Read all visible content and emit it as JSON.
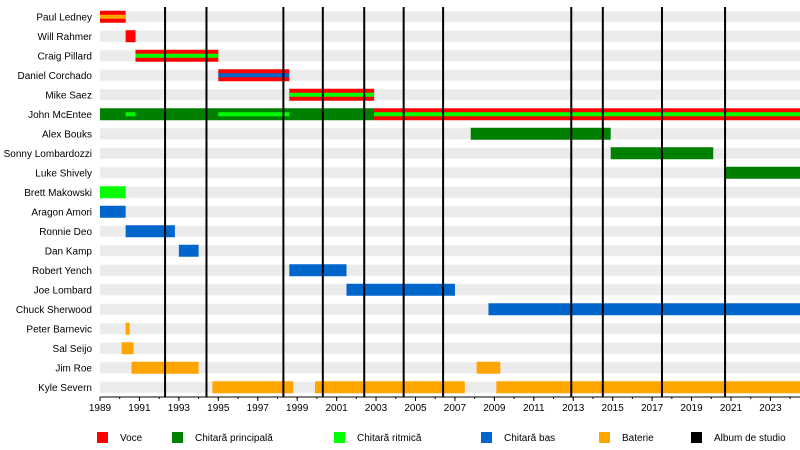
{
  "chart_data": {
    "type": "timeline",
    "title": "",
    "x_range": [
      1989,
      2024.5
    ],
    "x_ticks": [
      1989,
      1991,
      1993,
      1995,
      1997,
      1999,
      2001,
      2003,
      2005,
      2007,
      2009,
      2011,
      2013,
      2015,
      2017,
      2019,
      2021,
      2023
    ],
    "albums": [
      1992.3,
      1994.4,
      1998.3,
      2000.3,
      2002.4,
      2004.4,
      2006.4,
      2012.9,
      2014.5,
      2017.5,
      2020.7
    ],
    "roles": [
      {
        "key": "voce",
        "label": "Voce",
        "color": "#ff0000"
      },
      {
        "key": "principal",
        "label": "Chitară principală",
        "color": "#008000"
      },
      {
        "key": "ritmic",
        "label": "Chitară ritmică",
        "color": "#00ff00"
      },
      {
        "key": "bas",
        "label": "Chitară bas",
        "color": "#0066cc"
      },
      {
        "key": "baterie",
        "label": "Baterie",
        "color": "#ffa500"
      },
      {
        "key": "album",
        "label": "Album de studio",
        "color": "#000000"
      }
    ],
    "members": [
      {
        "name": "Paul Ledney",
        "segments": [
          {
            "start": 1989.0,
            "end": 1990.3,
            "role": "voce",
            "sub": "baterie"
          }
        ]
      },
      {
        "name": "Will Rahmer",
        "segments": [
          {
            "start": 1990.3,
            "end": 1990.8,
            "role": "voce"
          }
        ]
      },
      {
        "name": "Craig Pillard",
        "segments": [
          {
            "start": 1990.8,
            "end": 1995.0,
            "role": "voce",
            "sub": "ritmic"
          }
        ]
      },
      {
        "name": "Daniel Corchado",
        "segments": [
          {
            "start": 1995.0,
            "end": 1998.6,
            "role": "voce",
            "sub": "bas"
          }
        ]
      },
      {
        "name": "Mike Saez",
        "segments": [
          {
            "start": 1998.6,
            "end": 2002.9,
            "role": "voce",
            "sub": "ritmic"
          }
        ]
      },
      {
        "name": "John McEntee",
        "segments": [
          {
            "start": 1989.0,
            "end": 2002.9,
            "role": "principal"
          },
          {
            "start": 2002.9,
            "end": 2024.5,
            "role": "voce",
            "sub": "principal"
          },
          {
            "start": 1990.3,
            "end": 1990.8,
            "role": "ritmic",
            "overlay": true
          },
          {
            "start": 1995.0,
            "end": 1998.6,
            "role": "ritmic",
            "overlay": true
          },
          {
            "start": 2002.9,
            "end": 2007.8,
            "role": "ritmic",
            "overlay": true
          },
          {
            "start": 2007.8,
            "end": 2024.5,
            "role": "ritmic",
            "overlay": true
          }
        ]
      },
      {
        "name": "Alex Bouks",
        "segments": [
          {
            "start": 2007.8,
            "end": 2014.9,
            "role": "principal"
          }
        ]
      },
      {
        "name": "Sonny Lombardozzi",
        "segments": [
          {
            "start": 2014.9,
            "end": 2020.1,
            "role": "principal"
          }
        ]
      },
      {
        "name": "Luke Shively",
        "segments": [
          {
            "start": 2020.7,
            "end": 2024.5,
            "role": "principal"
          }
        ]
      },
      {
        "name": "Brett Makowski",
        "segments": [
          {
            "start": 1989.0,
            "end": 1990.3,
            "role": "ritmic"
          }
        ]
      },
      {
        "name": "Aragon Amori",
        "segments": [
          {
            "start": 1989.0,
            "end": 1990.3,
            "role": "bas"
          }
        ]
      },
      {
        "name": "Ronnie Deo",
        "segments": [
          {
            "start": 1990.3,
            "end": 1992.8,
            "role": "bas"
          }
        ]
      },
      {
        "name": "Dan Kamp",
        "segments": [
          {
            "start": 1993.0,
            "end": 1994.0,
            "role": "bas"
          }
        ]
      },
      {
        "name": "Robert Yench",
        "segments": [
          {
            "start": 1998.6,
            "end": 2001.5,
            "role": "bas"
          }
        ]
      },
      {
        "name": "Joe Lombard",
        "segments": [
          {
            "start": 2001.5,
            "end": 2007.0,
            "role": "bas"
          }
        ]
      },
      {
        "name": "Chuck Sherwood",
        "segments": [
          {
            "start": 2008.7,
            "end": 2024.5,
            "role": "bas"
          }
        ]
      },
      {
        "name": "Peter Barnevic",
        "segments": [
          {
            "start": 1990.3,
            "end": 1990.5,
            "role": "baterie"
          }
        ]
      },
      {
        "name": "Sal Seijo",
        "segments": [
          {
            "start": 1990.1,
            "end": 1990.7,
            "role": "baterie"
          }
        ]
      },
      {
        "name": "Jim Roe",
        "segments": [
          {
            "start": 1990.6,
            "end": 1994.0,
            "role": "baterie"
          },
          {
            "start": 2008.1,
            "end": 2009.3,
            "role": "baterie"
          }
        ]
      },
      {
        "name": "Kyle Severn",
        "segments": [
          {
            "start": 1994.7,
            "end": 1998.8,
            "role": "baterie"
          },
          {
            "start": 1999.9,
            "end": 2007.5,
            "role": "baterie"
          },
          {
            "start": 2009.1,
            "end": 2024.5,
            "role": "baterie"
          }
        ]
      }
    ]
  }
}
